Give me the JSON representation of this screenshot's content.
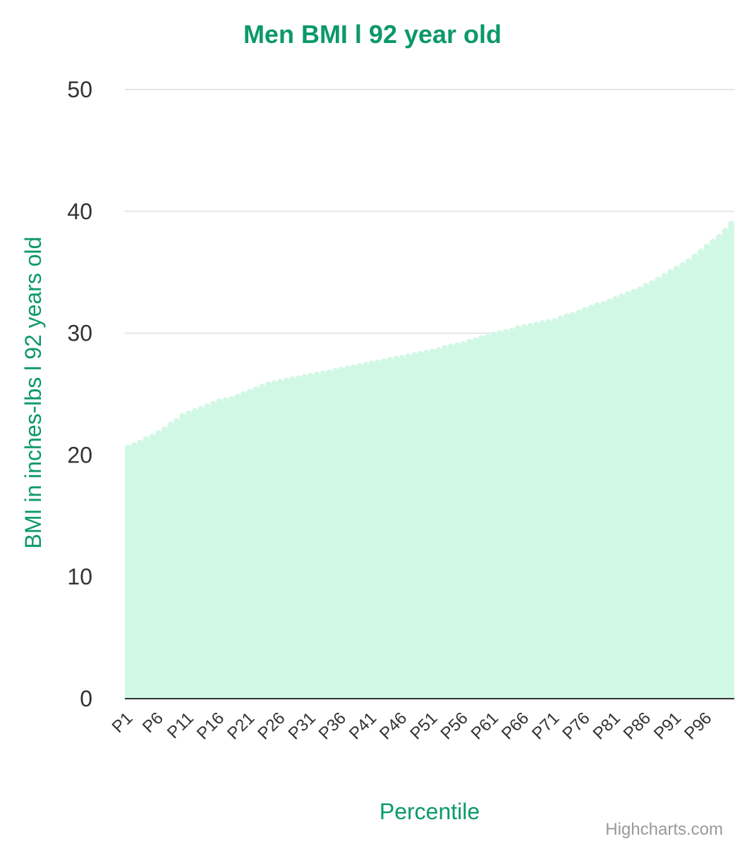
{
  "colors": {
    "accent": "#0b9968",
    "area_fill": "#d1f8e4",
    "grid": "#e6e6e6",
    "axis_line": "#333333",
    "credits": "#999999"
  },
  "credits": "Highcharts.com",
  "chart_data": {
    "type": "area",
    "title": "Men BMI l 92 year old",
    "xlabel": "Percentile",
    "ylabel": "BMI in inches-lbs l 92 years old",
    "ylim": [
      0,
      50
    ],
    "yticks": [
      0,
      10,
      20,
      30,
      40,
      50
    ],
    "grid": true,
    "legend": "none",
    "x_tick_labels": [
      "P1",
      "P6",
      "P11",
      "P16",
      "P21",
      "P26",
      "P31",
      "P36",
      "P41",
      "P46",
      "P51",
      "P56",
      "P61",
      "P66",
      "P71",
      "P76",
      "P81",
      "P86",
      "P91",
      "P96"
    ],
    "categories": [
      "P1",
      "P2",
      "P3",
      "P4",
      "P5",
      "P6",
      "P7",
      "P8",
      "P9",
      "P10",
      "P11",
      "P12",
      "P13",
      "P14",
      "P15",
      "P16",
      "P17",
      "P18",
      "P19",
      "P20",
      "P21",
      "P22",
      "P23",
      "P24",
      "P25",
      "P26",
      "P27",
      "P28",
      "P29",
      "P30",
      "P31",
      "P32",
      "P33",
      "P34",
      "P35",
      "P36",
      "P37",
      "P38",
      "P39",
      "P40",
      "P41",
      "P42",
      "P43",
      "P44",
      "P45",
      "P46",
      "P47",
      "P48",
      "P49",
      "P50",
      "P51",
      "P52",
      "P53",
      "P54",
      "P55",
      "P56",
      "P57",
      "P58",
      "P59",
      "P60",
      "P61",
      "P62",
      "P63",
      "P64",
      "P65",
      "P66",
      "P67",
      "P68",
      "P69",
      "P70",
      "P71",
      "P72",
      "P73",
      "P74",
      "P75",
      "P76",
      "P77",
      "P78",
      "P79",
      "P80",
      "P81",
      "P82",
      "P83",
      "P84",
      "P85",
      "P86",
      "P87",
      "P88",
      "P89",
      "P90",
      "P91",
      "P92",
      "P93",
      "P94",
      "P95",
      "P96",
      "P97",
      "P98",
      "P99",
      "P100"
    ],
    "values": [
      20.6,
      20.8,
      21.0,
      21.3,
      21.5,
      21.8,
      22.1,
      22.5,
      22.8,
      23.2,
      23.4,
      23.6,
      23.8,
      24.0,
      24.2,
      24.4,
      24.5,
      24.6,
      24.8,
      25.0,
      25.2,
      25.4,
      25.6,
      25.8,
      25.9,
      26.0,
      26.1,
      26.2,
      26.3,
      26.4,
      26.5,
      26.6,
      26.7,
      26.8,
      26.9,
      27.0,
      27.1,
      27.2,
      27.3,
      27.4,
      27.5,
      27.6,
      27.7,
      27.8,
      27.9,
      28.0,
      28.1,
      28.2,
      28.3,
      28.4,
      28.5,
      28.6,
      28.8,
      28.9,
      29.0,
      29.1,
      29.3,
      29.4,
      29.6,
      29.7,
      29.9,
      30.0,
      30.1,
      30.2,
      30.4,
      30.5,
      30.6,
      30.7,
      30.8,
      30.9,
      31.0,
      31.2,
      31.4,
      31.5,
      31.7,
      31.9,
      32.1,
      32.3,
      32.4,
      32.6,
      32.8,
      33.0,
      33.2,
      33.4,
      33.6,
      33.9,
      34.1,
      34.4,
      34.7,
      35.0,
      35.3,
      35.6,
      35.9,
      36.3,
      36.7,
      37.1,
      37.5,
      37.9,
      38.4,
      39.0
    ]
  }
}
